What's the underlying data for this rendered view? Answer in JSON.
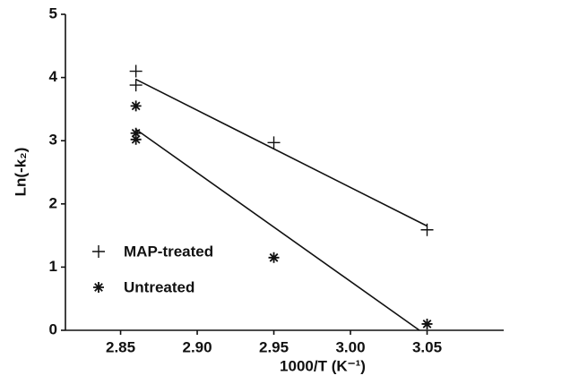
{
  "chart_data": {
    "type": "scatter",
    "xlabel": "1000/T (K⁻¹)",
    "ylabel": "Ln(-k₂)",
    "xlim": [
      2.814,
      3.1
    ],
    "ylim": [
      0,
      5
    ],
    "xticks": [
      2.85,
      {
        "value": 2.9,
        "label": "2.90"
      },
      2.95,
      {
        "value": 3,
        "label": "3.00"
      },
      3.05
    ],
    "yticks": [
      0,
      1,
      2,
      3,
      4,
      5
    ],
    "legend": "lower left",
    "series": [
      {
        "name": "MAP-treated",
        "marker": "plus",
        "color": "#111111",
        "x": [
          2.86,
          2.86,
          2.95,
          3.05
        ],
        "values": [
          4.1,
          3.88,
          2.97,
          1.59
        ]
      },
      {
        "name": "Untreated",
        "marker": "asterisk",
        "color": "#111111",
        "x": [
          2.86,
          2.86,
          2.86,
          2.95,
          3.05
        ],
        "values": [
          3.55,
          3.12,
          3.02,
          1.15,
          0.1
        ]
      }
    ],
    "fit_lines": [
      {
        "color": "#111111",
        "x": [
          2.86,
          3.05
        ],
        "values": [
          3.97,
          1.65
        ]
      },
      {
        "color": "#111111",
        "x": [
          2.86,
          3.045
        ],
        "values": [
          3.18,
          0
        ]
      }
    ]
  }
}
